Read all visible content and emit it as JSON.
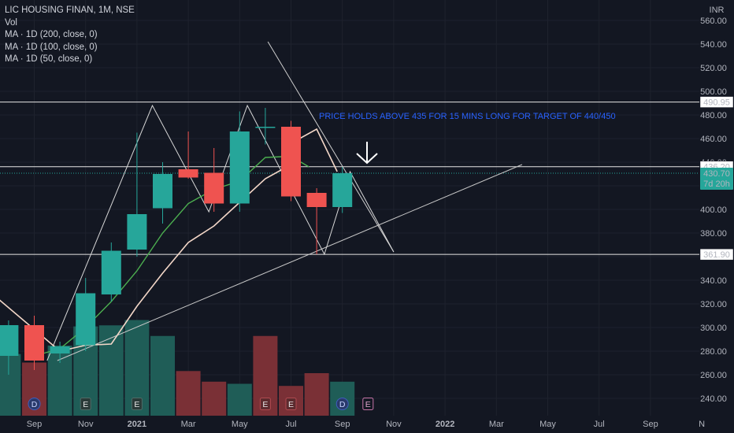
{
  "legend": {
    "symbol_line": "LIC HOUSING FINAN, 1M, NSE",
    "vol": "Vol",
    "ma200": "MA · 1D (200, close, 0)",
    "ma100": "MA · 1D (100, close, 0)",
    "ma50": "MA · 1D (50, close, 0)"
  },
  "currency": "INR",
  "annotation": "PRICE HOLDS ABOVE 435 FOR 15 MINS LONG FOR TARGET  OF 440/450",
  "countdown": "7d 20h",
  "colors": {
    "background": "#131722",
    "bull": "#26a69a",
    "bear": "#ef5350",
    "bull_volume": "#1f5d57",
    "bear_volume": "#7a3036",
    "ma_fast": "#4caf50",
    "ma_slow": "#f3d7c8",
    "annotation": "#2962ff"
  },
  "chart_data": {
    "type": "candlestick",
    "ylim": [
      230,
      570
    ],
    "yticks": [
      240,
      260,
      280,
      300,
      320,
      340,
      360,
      380,
      400,
      420,
      440,
      460,
      480,
      500,
      520,
      540,
      560
    ],
    "xticks": [
      {
        "label": "Sep",
        "m": 0
      },
      {
        "label": "Nov",
        "m": 2
      },
      {
        "label": "2021",
        "m": 4
      },
      {
        "label": "Mar",
        "m": 6
      },
      {
        "label": "May",
        "m": 8
      },
      {
        "label": "Jul",
        "m": 10
      },
      {
        "label": "Sep",
        "m": 12
      },
      {
        "label": "Nov",
        "m": 14
      },
      {
        "label": "2022",
        "m": 16
      },
      {
        "label": "Mar",
        "m": 18
      },
      {
        "label": "May",
        "m": 20
      },
      {
        "label": "Jul",
        "m": 22
      },
      {
        "label": "Sep",
        "m": 24
      },
      {
        "label": "N",
        "m": 26
      }
    ],
    "candles": [
      {
        "m": -1,
        "o": 276,
        "h": 306,
        "l": 260,
        "c": 302
      },
      {
        "m": 0,
        "o": 302,
        "h": 310,
        "l": 264,
        "c": 272
      },
      {
        "m": 1,
        "o": 278,
        "h": 288,
        "l": 270,
        "c": 284
      },
      {
        "m": 2,
        "o": 285,
        "h": 342,
        "l": 280,
        "c": 329
      },
      {
        "m": 3,
        "o": 328,
        "h": 372,
        "l": 322,
        "c": 365
      },
      {
        "m": 4,
        "o": 366,
        "h": 465,
        "l": 360,
        "c": 396
      },
      {
        "m": 5,
        "o": 401,
        "h": 440,
        "l": 388,
        "c": 430
      },
      {
        "m": 6,
        "o": 434,
        "h": 466,
        "l": 426,
        "c": 427
      },
      {
        "m": 7,
        "o": 431,
        "h": 452,
        "l": 398,
        "c": 405
      },
      {
        "m": 8,
        "o": 405,
        "h": 483,
        "l": 398,
        "c": 466
      },
      {
        "m": 9,
        "o": 470,
        "h": 486,
        "l": 455,
        "c": 470
      },
      {
        "m": 10,
        "o": 470,
        "h": 475,
        "l": 407,
        "c": 411
      },
      {
        "m": 11,
        "o": 414,
        "h": 418,
        "l": 362,
        "c": 402
      },
      {
        "m": 12,
        "o": 402,
        "h": 436,
        "l": 397,
        "c": 430.7
      }
    ],
    "volume": [
      {
        "m": -1,
        "v": 58,
        "up": true
      },
      {
        "m": 0,
        "v": 50,
        "up": false
      },
      {
        "m": 1,
        "v": 66,
        "up": true
      },
      {
        "m": 2,
        "v": 84,
        "up": true
      },
      {
        "m": 3,
        "v": 85,
        "up": true
      },
      {
        "m": 4,
        "v": 90,
        "up": true
      },
      {
        "m": 5,
        "v": 75,
        "up": true
      },
      {
        "m": 6,
        "v": 42,
        "up": false
      },
      {
        "m": 7,
        "v": 32,
        "up": false
      },
      {
        "m": 8,
        "v": 30,
        "up": true
      },
      {
        "m": 9,
        "v": 75,
        "up": false
      },
      {
        "m": 10,
        "v": 28,
        "up": false
      },
      {
        "m": 11,
        "v": 40,
        "up": false
      },
      {
        "m": 12,
        "v": 32,
        "up": true
      }
    ],
    "ma_fast": [
      {
        "m": 0,
        "p": 276
      },
      {
        "m": 1,
        "p": 282
      },
      {
        "m": 2,
        "p": 300
      },
      {
        "m": 3,
        "p": 322
      },
      {
        "m": 4,
        "p": 348
      },
      {
        "m": 5,
        "p": 380
      },
      {
        "m": 6,
        "p": 405
      },
      {
        "m": 7,
        "p": 417
      },
      {
        "m": 8,
        "p": 424
      },
      {
        "m": 9,
        "p": 444
      },
      {
        "m": 10,
        "p": 445
      },
      {
        "m": 10.7,
        "p": 436
      }
    ],
    "ma_slow": [
      {
        "m": -1.5,
        "p": 326
      },
      {
        "m": 1,
        "p": 280
      },
      {
        "m": 2,
        "p": 285
      },
      {
        "m": 3,
        "p": 286
      },
      {
        "m": 4,
        "p": 318
      },
      {
        "m": 5,
        "p": 346
      },
      {
        "m": 6,
        "p": 372
      },
      {
        "m": 7,
        "p": 386
      },
      {
        "m": 8,
        "p": 406
      },
      {
        "m": 9,
        "p": 426
      },
      {
        "m": 10,
        "p": 438
      },
      {
        "m": 10,
        "p": 456
      },
      {
        "m": 11,
        "p": 468
      },
      {
        "m": 11.8,
        "p": 432
      }
    ],
    "zigzag": [
      {
        "m": 0.5,
        "p": 272
      },
      {
        "m": 4.6,
        "p": 488
      },
      {
        "m": 6.8,
        "p": 398
      },
      {
        "m": 8.3,
        "p": 488
      },
      {
        "m": 11.3,
        "p": 362
      },
      {
        "m": 12.3,
        "p": 432
      },
      {
        "m": 14,
        "p": 364
      }
    ],
    "trendline_down": [
      {
        "m": 9.1,
        "p": 542
      },
      {
        "m": 14,
        "p": 364
      }
    ],
    "trendline_up": [
      {
        "m": 0.9,
        "p": 272
      },
      {
        "m": 19,
        "p": 438
      }
    ],
    "levels": [
      {
        "value": 490.95,
        "label": "490.95",
        "style": "white"
      },
      {
        "value": 436.2,
        "label": "436.20",
        "style": "white"
      },
      {
        "value": 430.7,
        "label": "430.70",
        "style": "last"
      },
      {
        "value": 361.9,
        "label": "361.90",
        "style": "white"
      }
    ],
    "event_markers": [
      {
        "m": 0,
        "label": "D",
        "kind": "dividend"
      },
      {
        "m": 2,
        "label": "E",
        "kind": "earnings"
      },
      {
        "m": 4,
        "label": "E",
        "kind": "earnings"
      },
      {
        "m": 9,
        "label": "E",
        "kind": "earnings-red"
      },
      {
        "m": 10,
        "label": "E",
        "kind": "earnings-red"
      },
      {
        "m": 12,
        "label": "D",
        "kind": "dividend"
      },
      {
        "m": 13,
        "label": "E",
        "kind": "earnings-outline"
      }
    ]
  }
}
